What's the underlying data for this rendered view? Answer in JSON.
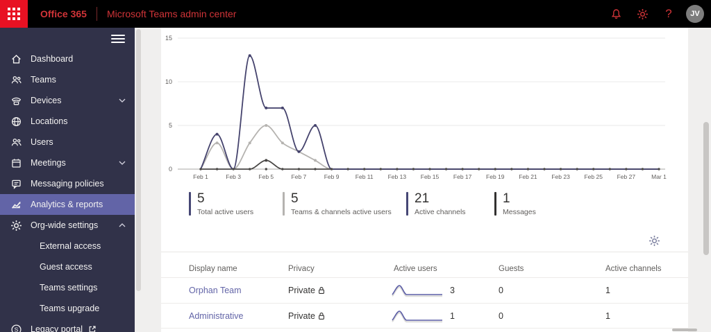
{
  "topbar": {
    "brand": "Office 365",
    "app_title": "Microsoft Teams admin center",
    "help_glyph": "?",
    "user_initials": "JV",
    "accent_red": "#d13438",
    "waffle_red": "#e81123"
  },
  "sidebar": {
    "items": [
      {
        "label": "Dashboard",
        "icon": "home"
      },
      {
        "label": "Teams",
        "icon": "people"
      },
      {
        "label": "Devices",
        "icon": "phone",
        "chevron": "down"
      },
      {
        "label": "Locations",
        "icon": "globe"
      },
      {
        "label": "Users",
        "icon": "people"
      },
      {
        "label": "Meetings",
        "icon": "calendar",
        "chevron": "down"
      },
      {
        "label": "Messaging policies",
        "icon": "chat"
      },
      {
        "label": "Analytics & reports",
        "icon": "chart",
        "active": true
      },
      {
        "label": "Org-wide settings",
        "icon": "gear",
        "chevron": "up"
      },
      {
        "label": "External access",
        "indent": true
      },
      {
        "label": "Guest access",
        "indent": true
      },
      {
        "label": "Teams settings",
        "indent": true
      },
      {
        "label": "Teams upgrade",
        "indent": true
      },
      {
        "label": "Legacy portal",
        "icon": "skype",
        "external": true,
        "icon_glyph": "S"
      }
    ],
    "active_color": "#6264a7",
    "bg_color": "#313249"
  },
  "chart_data": {
    "type": "line",
    "title": "",
    "xlabel": "",
    "ylabel": "",
    "ylim": [
      0,
      15
    ],
    "yticks": [
      0,
      5,
      10,
      15
    ],
    "grid": true,
    "legend_position": "none",
    "days": 29,
    "tick_days": [
      0,
      2,
      4,
      6,
      8,
      10,
      12,
      14,
      16,
      18,
      20,
      22,
      24,
      26,
      28
    ],
    "x_labels": [
      "Feb 1",
      "Feb 3",
      "Feb 5",
      "Feb 7",
      "Feb 9",
      "Feb 11",
      "Feb 13",
      "Feb 15",
      "Feb 17",
      "Feb 19",
      "Feb 21",
      "Feb 23",
      "Feb 25",
      "Feb 27",
      "Mar 1"
    ],
    "series": [
      {
        "name": "Teams & channels active users",
        "color": "#b5b3b0",
        "values": [
          0,
          3,
          0,
          3,
          5,
          3,
          2,
          1,
          0,
          0,
          0,
          0,
          0,
          0,
          0,
          0,
          0,
          0,
          0,
          0,
          0,
          0,
          0,
          0,
          0,
          0,
          0,
          0,
          0
        ]
      },
      {
        "name": "Messages",
        "color": "#484644",
        "values": [
          0,
          0,
          0,
          0,
          1,
          0,
          0,
          0,
          0,
          0,
          0,
          0,
          0,
          0,
          0,
          0,
          0,
          0,
          0,
          0,
          0,
          0,
          0,
          0,
          0,
          0,
          0,
          0,
          0
        ]
      },
      {
        "name": "Total active users",
        "color": "#45436d",
        "values": [
          0,
          4,
          0,
          13,
          7,
          7,
          2,
          5,
          0,
          0,
          0,
          0,
          0,
          0,
          0,
          0,
          0,
          0,
          0,
          0,
          0,
          0,
          0,
          0,
          0,
          0,
          0,
          0,
          0
        ]
      }
    ]
  },
  "stats": [
    {
      "value": "5",
      "label": "Total active users",
      "color": "#464775"
    },
    {
      "value": "5",
      "label": "Teams & channels active users",
      "color": "#b5b3b0"
    },
    {
      "value": "21",
      "label": "Active channels",
      "color": "#464775"
    },
    {
      "value": "1",
      "label": "Messages",
      "color": "#323130"
    }
  ],
  "table": {
    "columns": [
      "Display name",
      "Privacy",
      "Active users",
      "Guests",
      "Active channels"
    ],
    "rows": [
      {
        "name": "Orphan Team",
        "privacy": "Private",
        "active_users": 3,
        "guests": 0,
        "active_channels": 1,
        "sparkline": [
          0,
          3,
          0,
          0,
          0,
          0,
          0,
          0
        ]
      },
      {
        "name": "Administrative",
        "privacy": "Private",
        "active_users": 1,
        "guests": 0,
        "active_channels": 1,
        "sparkline": [
          0,
          1,
          0,
          0,
          0,
          0,
          0,
          0
        ]
      }
    ],
    "sparkline_color": "#5b5da6"
  }
}
